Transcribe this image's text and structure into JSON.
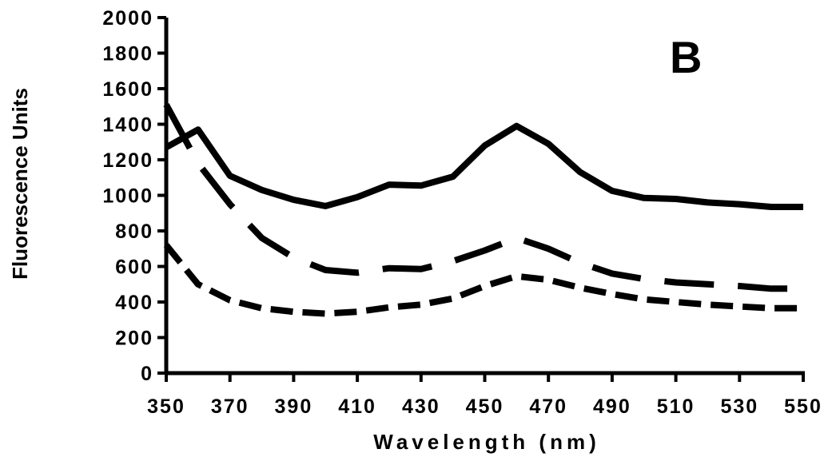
{
  "chart_data": {
    "type": "line",
    "panel_label": "B",
    "xlabel": "Wavelength (nm)",
    "ylabel": "Fluorescence Units",
    "xlim": [
      350,
      550
    ],
    "ylim": [
      0,
      2000
    ],
    "x_ticks": [
      350,
      370,
      390,
      410,
      430,
      450,
      470,
      490,
      510,
      530,
      550
    ],
    "y_ticks": [
      0,
      200,
      400,
      600,
      800,
      1000,
      1200,
      1400,
      1600,
      1800,
      2000
    ],
    "grid": false,
    "x": [
      350,
      360,
      370,
      380,
      390,
      400,
      410,
      420,
      430,
      440,
      450,
      460,
      470,
      480,
      490,
      500,
      510,
      520,
      530,
      540,
      550
    ],
    "series": [
      {
        "style": "solid",
        "values": [
          1270,
          1370,
          1110,
          1030,
          975,
          940,
          990,
          1060,
          1055,
          1105,
          1280,
          1390,
          1290,
          1130,
          1025,
          985,
          980,
          960,
          950,
          935,
          935
        ]
      },
      {
        "style": "long-dash",
        "values": [
          1510,
          1180,
          950,
          760,
          650,
          580,
          565,
          590,
          585,
          630,
          690,
          760,
          700,
          620,
          560,
          530,
          510,
          500,
          490,
          475,
          475
        ]
      },
      {
        "style": "short-dash",
        "values": [
          720,
          500,
          410,
          365,
          345,
          335,
          345,
          370,
          385,
          420,
          490,
          545,
          525,
          480,
          445,
          415,
          400,
          385,
          375,
          365,
          365
        ]
      }
    ]
  }
}
